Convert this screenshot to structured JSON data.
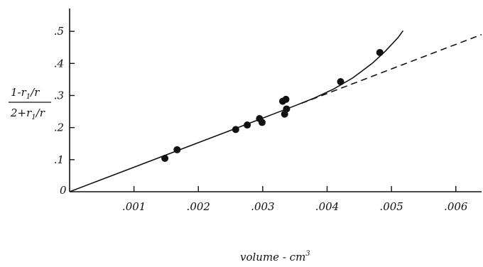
{
  "chart_data": {
    "type": "scatter",
    "xlabel": "volume - cm",
    "xlabel_sup": "3",
    "ylabel_numerator": "1-r",
    "ylabel_numerator_sub": "1",
    "ylabel_numerator_tail": "/r",
    "ylabel_denominator": "2+r",
    "ylabel_denominator_sub": "1",
    "ylabel_denominator_tail": "/r",
    "origin_label": "0",
    "x_tick_labels": [
      ".001",
      ".002",
      ".003",
      ".004",
      ".005",
      ".006"
    ],
    "x_ticks": [
      0.001,
      0.002,
      0.003,
      0.004,
      0.005,
      0.006
    ],
    "y_tick_labels": [
      ".1",
      ".2",
      ".3",
      ".4",
      ".5"
    ],
    "y_ticks": [
      0.1,
      0.2,
      0.3,
      0.4,
      0.5
    ],
    "xlim": [
      0,
      0.0064
    ],
    "ylim": [
      0,
      0.58
    ],
    "grid": false,
    "series": [
      {
        "kind": "points",
        "points": [
          [
            0.00148,
            0.104
          ],
          [
            0.00167,
            0.131
          ],
          [
            0.00258,
            0.194
          ],
          [
            0.00276,
            0.208
          ],
          [
            0.00295,
            0.228
          ],
          [
            0.00299,
            0.216
          ],
          [
            0.00331,
            0.282
          ],
          [
            0.00336,
            0.288
          ],
          [
            0.00334,
            0.242
          ],
          [
            0.00337,
            0.258
          ],
          [
            0.00421,
            0.343
          ],
          [
            0.00482,
            0.434
          ]
        ]
      },
      {
        "kind": "fitted-curve",
        "style": "solid",
        "points": [
          [
            0,
            0
          ],
          [
            0.001,
            0.0765
          ],
          [
            0.002,
            0.153
          ],
          [
            0.003,
            0.2295
          ],
          [
            0.0035,
            0.268
          ],
          [
            0.0038,
            0.292
          ],
          [
            0.0041,
            0.32
          ],
          [
            0.0044,
            0.355
          ],
          [
            0.0047,
            0.4
          ],
          [
            0.0049,
            0.437
          ],
          [
            0.0051,
            0.48
          ],
          [
            0.00518,
            0.502
          ]
        ]
      },
      {
        "kind": "linear-extrapolation",
        "style": "dashed",
        "points": [
          [
            0.0036,
            0.2755
          ],
          [
            0.0064,
            0.49
          ]
        ]
      }
    ]
  }
}
